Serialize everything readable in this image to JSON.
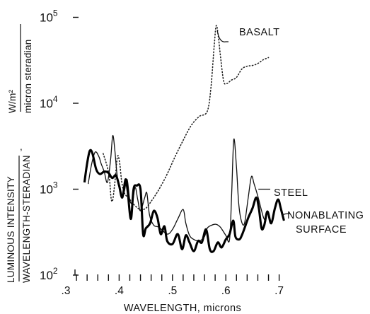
{
  "chart_data": {
    "type": "line",
    "title": "",
    "xlabel": "WAVELENGTH, microns",
    "ylabel_top": {
      "numerator": "LUMINOUS INTENSITY",
      "denominator": "WAVELENGTH-STERADIAN"
    },
    "ylabel_units": {
      "numerator": "W/m²",
      "denominator": "micron steradian"
    },
    "x_ticks": [
      ".3",
      ".4",
      ".5",
      ".6",
      ".7"
    ],
    "x_tick_values": [
      0.3,
      0.4,
      0.5,
      0.6,
      0.7
    ],
    "y_ticks": [
      {
        "base": "10",
        "exp": "2",
        "value": 100
      },
      {
        "base": "10",
        "exp": "3",
        "value": 1000
      },
      {
        "base": "10",
        "exp": "4",
        "value": 10000
      },
      {
        "base": "10",
        "exp": "5",
        "value": 100000
      }
    ],
    "xlim": [
      0.3,
      0.72
    ],
    "ylim": [
      100,
      100000
    ],
    "y_scale": "log",
    "grid": false,
    "legend": "none (series labelled inline)",
    "series": [
      {
        "name": "BASALT",
        "style": "dotted",
        "points": [
          [
            0.37,
            2600
          ],
          [
            0.378,
            1800
          ],
          [
            0.382,
            1300
          ],
          [
            0.385,
            780
          ],
          [
            0.388,
            750
          ],
          [
            0.392,
            1200
          ],
          [
            0.397,
            2400
          ],
          [
            0.401,
            2000
          ],
          [
            0.405,
            1200
          ],
          [
            0.41,
            900
          ],
          [
            0.42,
            760
          ],
          [
            0.43,
            640
          ],
          [
            0.44,
            580
          ],
          [
            0.45,
            600
          ],
          [
            0.46,
            720
          ],
          [
            0.475,
            1000
          ],
          [
            0.49,
            1500
          ],
          [
            0.505,
            2400
          ],
          [
            0.52,
            3700
          ],
          [
            0.535,
            5500
          ],
          [
            0.55,
            7000
          ],
          [
            0.565,
            8000
          ],
          [
            0.572,
            15000
          ],
          [
            0.578,
            45000
          ],
          [
            0.582,
            80000
          ],
          [
            0.586,
            60000
          ],
          [
            0.59,
            35000
          ],
          [
            0.596,
            18000
          ],
          [
            0.602,
            17000
          ],
          [
            0.61,
            18500
          ],
          [
            0.62,
            20000
          ],
          [
            0.63,
            25000
          ],
          [
            0.64,
            27000
          ],
          [
            0.65,
            27500
          ],
          [
            0.66,
            29000
          ],
          [
            0.67,
            32000
          ],
          [
            0.68,
            34000
          ]
        ]
      },
      {
        "name": "STEEL",
        "style": "thin",
        "points": [
          [
            0.342,
            1150
          ],
          [
            0.348,
            1900
          ],
          [
            0.355,
            2700
          ],
          [
            0.362,
            2400
          ],
          [
            0.366,
            2000
          ],
          [
            0.372,
            1600
          ],
          [
            0.378,
            1200
          ],
          [
            0.384,
            2200
          ],
          [
            0.388,
            4200
          ],
          [
            0.392,
            2800
          ],
          [
            0.396,
            1500
          ],
          [
            0.402,
            900
          ],
          [
            0.406,
            800
          ],
          [
            0.41,
            950
          ],
          [
            0.415,
            1300
          ],
          [
            0.42,
            750
          ],
          [
            0.425,
            700
          ],
          [
            0.43,
            1050
          ],
          [
            0.435,
            750
          ],
          [
            0.44,
            560
          ],
          [
            0.448,
            800
          ],
          [
            0.452,
            900
          ],
          [
            0.457,
            500
          ],
          [
            0.465,
            380
          ],
          [
            0.475,
            360
          ],
          [
            0.49,
            300
          ],
          [
            0.5,
            340
          ],
          [
            0.51,
            450
          ],
          [
            0.52,
            580
          ],
          [
            0.525,
            400
          ],
          [
            0.532,
            290
          ],
          [
            0.54,
            260
          ],
          [
            0.55,
            250
          ],
          [
            0.56,
            280
          ],
          [
            0.565,
            350
          ],
          [
            0.573,
            380
          ],
          [
            0.582,
            390
          ],
          [
            0.59,
            360
          ],
          [
            0.6,
            290
          ],
          [
            0.607,
            260
          ],
          [
            0.611,
            900
          ],
          [
            0.615,
            3800
          ],
          [
            0.62,
            1800
          ],
          [
            0.624,
            700
          ],
          [
            0.629,
            430
          ],
          [
            0.635,
            400
          ],
          [
            0.642,
            800
          ],
          [
            0.648,
            1400
          ],
          [
            0.653,
            1150
          ],
          [
            0.66,
            830
          ],
          [
            0.67,
            480
          ],
          [
            0.675,
            420
          ]
        ]
      },
      {
        "name": "NONABLATING SURFACE",
        "style": "thick",
        "points": [
          [
            0.335,
            1200
          ],
          [
            0.34,
            2000
          ],
          [
            0.345,
            2800
          ],
          [
            0.35,
            2600
          ],
          [
            0.357,
            1700
          ],
          [
            0.364,
            1500
          ],
          [
            0.372,
            1600
          ],
          [
            0.38,
            1550
          ],
          [
            0.387,
            1350
          ],
          [
            0.394,
            1450
          ],
          [
            0.4,
            1100
          ],
          [
            0.406,
            800
          ],
          [
            0.412,
            1300
          ],
          [
            0.416,
            950
          ],
          [
            0.422,
            450
          ],
          [
            0.427,
            1000
          ],
          [
            0.433,
            1100
          ],
          [
            0.44,
            1000
          ],
          [
            0.445,
            300
          ],
          [
            0.45,
            350
          ],
          [
            0.458,
            400
          ],
          [
            0.465,
            560
          ],
          [
            0.472,
            460
          ],
          [
            0.478,
            300
          ],
          [
            0.485,
            370
          ],
          [
            0.49,
            250
          ],
          [
            0.5,
            230
          ],
          [
            0.51,
            300
          ],
          [
            0.518,
            200
          ],
          [
            0.525,
            290
          ],
          [
            0.532,
            240
          ],
          [
            0.54,
            190
          ],
          [
            0.548,
            250
          ],
          [
            0.555,
            240
          ],
          [
            0.563,
            340
          ],
          [
            0.57,
            200
          ],
          [
            0.577,
            190
          ],
          [
            0.585,
            240
          ],
          [
            0.592,
            210
          ],
          [
            0.6,
            260
          ],
          [
            0.607,
            300
          ],
          [
            0.614,
            430
          ],
          [
            0.618,
            280
          ],
          [
            0.625,
            260
          ],
          [
            0.63,
            290
          ],
          [
            0.637,
            380
          ],
          [
            0.643,
            480
          ],
          [
            0.65,
            600
          ],
          [
            0.657,
            800
          ],
          [
            0.662,
            600
          ],
          [
            0.667,
            350
          ],
          [
            0.672,
            380
          ],
          [
            0.678,
            550
          ],
          [
            0.685,
            400
          ],
          [
            0.692,
            600
          ],
          [
            0.698,
            760
          ],
          [
            0.703,
            600
          ],
          [
            0.709,
            430
          ]
        ]
      }
    ]
  }
}
